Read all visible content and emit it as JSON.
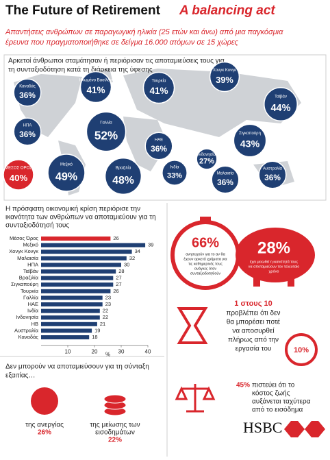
{
  "header": {
    "title": "The Future of Retirement",
    "title_accent": "A balancing act",
    "subtitle": [
      "Απαντήσεις ανθρώπων σε παραγωγική ηλικία (25 ετών και άνω) από μια παγκόσμια",
      "έρευνα που πραγματοποιήθηκε σε δείγμα 16.000 ατόμων σε 15 χώρες"
    ]
  },
  "map": {
    "heading": [
      "Αρκετοί άνθρωποι σταμάτησαν ή περιόρισαν τις αποταμιεύσεις τους για",
      "τη συνταξιοδότηση κατά τη διάρκεια της ύφεσης"
    ],
    "bubbles": [
      {
        "name": "Καναδάς",
        "value": 36,
        "value_label": "36%",
        "color": "#1f3f73"
      },
      {
        "name": "Ηνωμένο Βασίλειο",
        "value": 41,
        "value_label": "41%",
        "color": "#1f3f73"
      },
      {
        "name": "Τουρκία",
        "value": 41,
        "value_label": "41%",
        "color": "#1f3f73"
      },
      {
        "name": "Χονγκ Κονγκ",
        "value": 39,
        "value_label": "39%",
        "color": "#1f3f73"
      },
      {
        "name": "Ταϊβάν",
        "value": 44,
        "value_label": "44%",
        "color": "#1f3f73"
      },
      {
        "name": "ΗΠΑ",
        "value": 36,
        "value_label": "36%",
        "color": "#1f3f73"
      },
      {
        "name": "Γαλλία",
        "value": 52,
        "value_label": "52%",
        "color": "#1f3f73"
      },
      {
        "name": "Σιγκαπούρη",
        "value": 43,
        "value_label": "43%",
        "color": "#1f3f73"
      },
      {
        "name": "ΗΑΕ",
        "value": 36,
        "value_label": "36%",
        "color": "#1f3f73"
      },
      {
        "name": "Μεξικό",
        "value": 49,
        "value_label": "49%",
        "color": "#1f3f73"
      },
      {
        "name": "Βραζιλία",
        "value": 48,
        "value_label": "48%",
        "color": "#1f3f73"
      },
      {
        "name": "Ινδία",
        "value": 33,
        "value_label": "33%",
        "color": "#1f3f73"
      },
      {
        "name": "Ινδονησία",
        "value": 27,
        "value_label": "27%",
        "color": "#1f3f73"
      },
      {
        "name": "Μαλαισία",
        "value": 36,
        "value_label": "36%",
        "color": "#1f3f73"
      },
      {
        "name": "Αυστραλία",
        "value": 36,
        "value_label": "36%",
        "color": "#1f3f73"
      },
      {
        "name": "ΜΕΣΟΣ ΟΡΟΣ",
        "value": 40,
        "value_label": "40%",
        "color": "#d9262c"
      }
    ]
  },
  "chart_data": {
    "type": "hbar",
    "title": [
      "Η πρόσφατη οικονομική κρίση περιόρισε την",
      "ικανότητα των ανθρώπων να αποταμιεύουν για τη",
      "συνταξιοδότησή τους"
    ],
    "categories": [
      "Μέσος Όρος",
      "Μεξικό",
      "Χονγκ Κονγκ",
      "Μαλαισία",
      "ΗΠΑ",
      "Ταϊβάν",
      "Βραζιλία",
      "Σιγκαπούρη",
      "Τουρκία",
      "Γαλλία",
      "ΗΑΕ",
      "Ινδία",
      "Ινδονησία",
      "ΗΒ",
      "Αυστραλία",
      "Καναδάς"
    ],
    "values": [
      26,
      39,
      34,
      32,
      30,
      28,
      27,
      27,
      26,
      23,
      23,
      22,
      22,
      21,
      19,
      18
    ],
    "colors": [
      "#d9262c",
      "#1f3f73",
      "#1f3f73",
      "#1f3f73",
      "#1f3f73",
      "#1f3f73",
      "#1f3f73",
      "#1f3f73",
      "#1f3f73",
      "#1f3f73",
      "#1f3f73",
      "#1f3f73",
      "#1f3f73",
      "#1f3f73",
      "#1f3f73",
      "#1f3f73"
    ],
    "xlim": [
      0,
      40
    ],
    "xticks": [
      10,
      20,
      30,
      40
    ],
    "xlabel": "%"
  },
  "facts": {
    "worry": {
      "value": "66%",
      "text": [
        "ανησυχούν για το αν θα",
        "έχουν αρκετά χρήματα για",
        "τις καθημερινές τους",
        "ανάγκες όταν",
        "συνταξιοδοτηθούν"
      ]
    },
    "savings": {
      "value": "28%",
      "text": [
        "έχει μειωθεί η ικανότητά τους",
        "να αποταμιεύουν τον τελευταίο",
        "χρόνο"
      ]
    },
    "retire": {
      "value": "1 στους 10",
      "badge": "10%",
      "text": [
        "προβλέπει ότι δεν",
        "θα μπορέσει ποτέ",
        "να αποσυρθεί",
        "πλήρως από την",
        "εργασία του"
      ]
    },
    "cost": {
      "value": "45%",
      "text": [
        "πιστεύει ότι το",
        "κόστος ζωής",
        "αυξάνεται ταχύτερα",
        "από το εισόδημα"
      ]
    }
  },
  "reasons": {
    "heading": [
      "Δεν μπορούν να αποταμιεύσουν για τη σύνταξη",
      "εξαιτίας…"
    ],
    "items": [
      {
        "label": [
          "της ανεργίας"
        ],
        "value": "26%"
      },
      {
        "label": [
          "της μείωσης των",
          "εισοδημάτων"
        ],
        "value": "22%"
      }
    ]
  },
  "logo": "HSBC"
}
